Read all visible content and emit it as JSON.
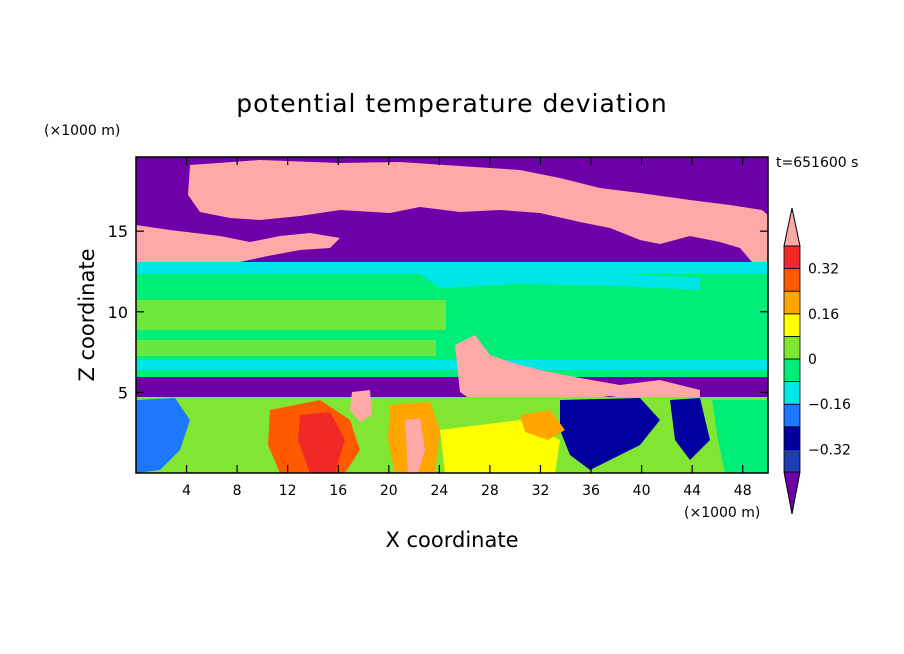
{
  "chart_data": {
    "type": "heatmap",
    "title": "potential temperature deviation",
    "xlabel": "X coordinate",
    "ylabel": "Z coordinate",
    "x_unit": "(×1000 m)",
    "y_unit": "(×1000 m)",
    "time_label": "t=651600 s",
    "xlim": [
      0,
      50
    ],
    "ylim": [
      0,
      19.6
    ],
    "x_ticks": [
      4,
      8,
      12,
      16,
      20,
      24,
      28,
      32,
      36,
      40,
      44,
      48
    ],
    "x_tick_labels": [
      "4",
      "8",
      "12",
      "16",
      "20",
      "24",
      "28",
      "32",
      "36",
      "40",
      "44",
      "48"
    ],
    "y_ticks": [
      5,
      10,
      15
    ],
    "y_tick_labels": [
      "5",
      "10",
      "15"
    ],
    "colorbar": {
      "levels": [
        -0.4,
        -0.32,
        -0.24,
        -0.16,
        -0.08,
        0,
        0.08,
        0.16,
        0.24,
        0.32,
        0.4
      ],
      "labeled_ticks": [
        -0.32,
        -0.16,
        0,
        0.16,
        0.32
      ],
      "labeled_tick_text": [
        "−0.32",
        "−0.16",
        "0",
        "0.16",
        "0.32"
      ],
      "colors": [
        "#1e3cb4",
        "#0000a0",
        "#1e78ff",
        "#00e6e6",
        "#00ee78",
        "#80e632",
        "#ffff00",
        "#ffa500",
        "#ff5a00",
        "#f02828"
      ],
      "under_color": "#6e00aa",
      "over_color": "#ffa8a8",
      "extend": "both"
    },
    "field_levels_description": [
      {
        "z_range": [
          15.5,
          19.6
        ],
        "value": -0.45
      },
      {
        "z_range": [
          13,
          15.5
        ],
        "value": -0.45
      },
      {
        "z_range": [
          6,
          13
        ],
        "value": 0.02
      },
      {
        "z_range": [
          5.5,
          6
        ],
        "value": -0.45
      },
      {
        "z_range": [
          0,
          5.5
        ],
        "value": 0.05
      }
    ],
    "grid": false
  }
}
